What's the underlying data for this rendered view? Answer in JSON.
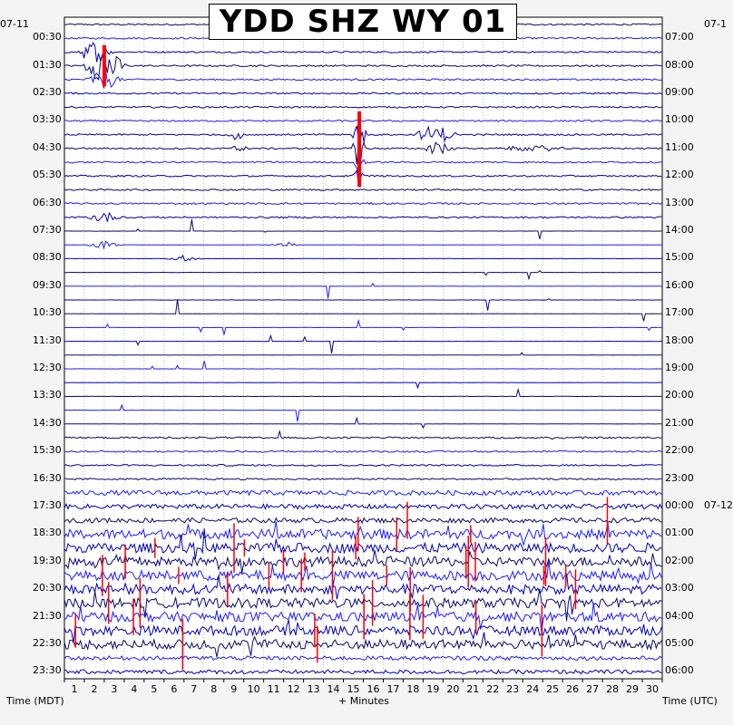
{
  "title": "YDD SHZ WY 01",
  "chart_data": {
    "type": "helicorder",
    "station": "YDD",
    "channel": "SHZ",
    "network": "WY",
    "location": "01",
    "left_date_label": "07-11",
    "right_date_label_top": "07-1",
    "right_date_label_midnight": "07-12",
    "xlabel": "+ Minutes",
    "left_axis_label": "Time (MDT)",
    "right_axis_label": "Time (UTC)",
    "x_ticks": [
      1,
      2,
      3,
      4,
      5,
      6,
      7,
      8,
      9,
      10,
      11,
      12,
      13,
      14,
      15,
      16,
      17,
      18,
      19,
      20,
      21,
      22,
      23,
      24,
      25,
      26,
      27,
      28,
      29,
      30
    ],
    "xlim": [
      0,
      30
    ],
    "left_time_labels": [
      "00:30",
      "01:30",
      "02:30",
      "03:30",
      "04:30",
      "05:30",
      "06:30",
      "07:30",
      "08:30",
      "09:30",
      "10:30",
      "11:30",
      "12:30",
      "13:30",
      "14:30",
      "15:30",
      "16:30",
      "17:30",
      "18:30",
      "19:30",
      "20:30",
      "21:30",
      "22:30",
      "23:30"
    ],
    "right_time_labels": [
      "07:00",
      "08:00",
      "09:00",
      "10:00",
      "11:00",
      "12:00",
      "13:00",
      "14:00",
      "15:00",
      "16:00",
      "17:00",
      "18:00",
      "19:00",
      "20:00",
      "21:00",
      "22:00",
      "23:00",
      "00:00",
      "01:00",
      "02:00",
      "03:00",
      "04:00",
      "05:00",
      "06:00"
    ],
    "trace_count": 48,
    "trace_colors": [
      "#0a0a6e",
      "#1e1eff",
      "#0000b4"
    ],
    "clip_color": "#ff0000",
    "grid": true,
    "events": [
      {
        "trace": 2,
        "minute": 1.5,
        "amp": 1.8,
        "width": 1.0
      },
      {
        "trace": 3,
        "minute": 2.0,
        "amp": 3.0,
        "width": 1.2,
        "clipped": true
      },
      {
        "trace": 4,
        "minute": 2.0,
        "amp": 1.6,
        "width": 1.0
      },
      {
        "trace": 8,
        "minute": 8.6,
        "amp": 0.9,
        "width": 0.5
      },
      {
        "trace": 9,
        "minute": 8.8,
        "amp": 0.7,
        "width": 0.5
      },
      {
        "trace": 8,
        "minute": 14.8,
        "amp": 3.4,
        "width": 0.4,
        "clipped": true
      },
      {
        "trace": 9,
        "minute": 14.8,
        "amp": 3.4,
        "width": 0.4,
        "clipped": true
      },
      {
        "trace": 10,
        "minute": 14.8,
        "amp": 2.0,
        "width": 0.4,
        "clipped": true
      },
      {
        "trace": 11,
        "minute": 14.8,
        "amp": 1.6,
        "width": 0.4,
        "clipped": true
      },
      {
        "trace": 8,
        "minute": 18.6,
        "amp": 1.6,
        "width": 1.2
      },
      {
        "trace": 9,
        "minute": 18.8,
        "amp": 1.0,
        "width": 1.0
      },
      {
        "trace": 9,
        "minute": 23.5,
        "amp": 0.5,
        "width": 2.0
      },
      {
        "trace": 14,
        "minute": 2.0,
        "amp": 0.9,
        "width": 1.0
      },
      {
        "trace": 16,
        "minute": 2.0,
        "amp": 0.6,
        "width": 1.0
      },
      {
        "trace": 16,
        "minute": 11.0,
        "amp": 0.6,
        "width": 0.8
      },
      {
        "trace": 17,
        "minute": 6.0,
        "amp": 0.5,
        "width": 1.0
      }
    ],
    "noise_profile": [
      {
        "trace_from": 0,
        "trace_to": 14,
        "level": 0.12
      },
      {
        "trace_from": 15,
        "trace_to": 29,
        "level": 0.02
      },
      {
        "trace_from": 30,
        "trace_to": 33,
        "level": 0.12
      },
      {
        "trace_from": 34,
        "trace_to": 36,
        "level": 0.35
      },
      {
        "trace_from": 37,
        "trace_to": 45,
        "level": 0.7
      },
      {
        "trace_from": 46,
        "trace_to": 47,
        "level": 0.3
      }
    ]
  }
}
